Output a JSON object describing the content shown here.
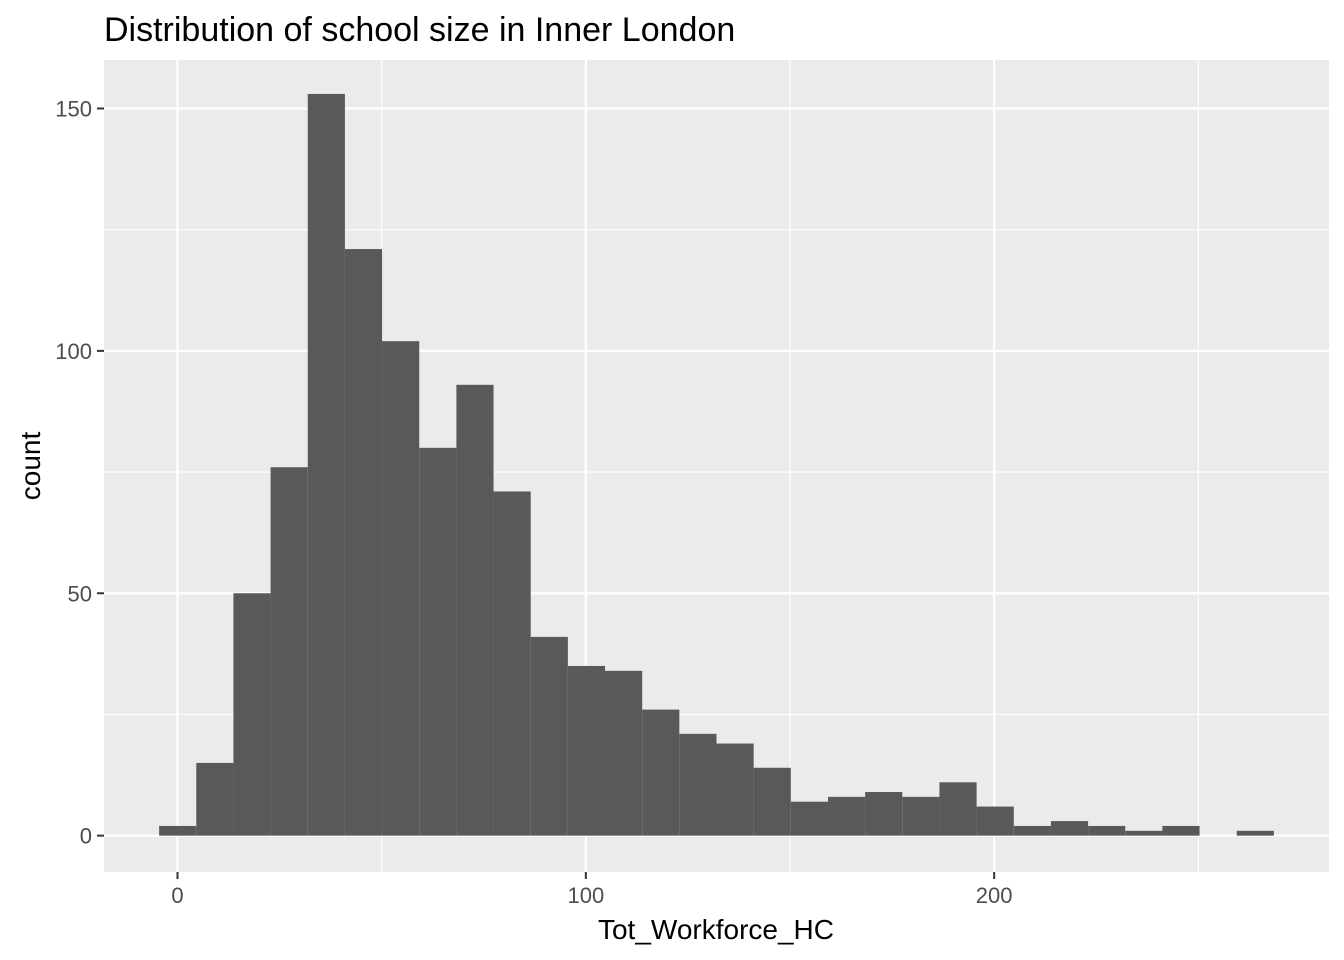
{
  "chart_data": {
    "type": "bar",
    "subtype": "histogram",
    "title": "Distribution of school size in Inner London",
    "xlabel": "Tot_Workforce_HC",
    "ylabel": "count",
    "xlim": [
      -18,
      282
    ],
    "ylim": [
      -7.5,
      160
    ],
    "x_ticks": [
      0,
      100,
      200
    ],
    "y_ticks": [
      0,
      50,
      100,
      150
    ],
    "grid": true,
    "bin_width": 9.1,
    "bins": [
      {
        "x0": -4.5,
        "x1": 4.6,
        "count": 2
      },
      {
        "x0": 4.6,
        "x1": 13.7,
        "count": 15
      },
      {
        "x0": 13.7,
        "x1": 22.8,
        "count": 50
      },
      {
        "x0": 22.8,
        "x1": 31.9,
        "count": 76
      },
      {
        "x0": 31.9,
        "x1": 41.0,
        "count": 153
      },
      {
        "x0": 41.0,
        "x1": 50.1,
        "count": 121
      },
      {
        "x0": 50.1,
        "x1": 59.2,
        "count": 102
      },
      {
        "x0": 59.2,
        "x1": 68.3,
        "count": 80
      },
      {
        "x0": 68.3,
        "x1": 77.4,
        "count": 93
      },
      {
        "x0": 77.4,
        "x1": 86.5,
        "count": 71
      },
      {
        "x0": 86.5,
        "x1": 95.6,
        "count": 41
      },
      {
        "x0": 95.6,
        "x1": 104.7,
        "count": 35
      },
      {
        "x0": 104.7,
        "x1": 113.8,
        "count": 34
      },
      {
        "x0": 113.8,
        "x1": 122.9,
        "count": 26
      },
      {
        "x0": 122.9,
        "x1": 132.0,
        "count": 21
      },
      {
        "x0": 132.0,
        "x1": 141.1,
        "count": 19
      },
      {
        "x0": 141.1,
        "x1": 150.2,
        "count": 14
      },
      {
        "x0": 150.2,
        "x1": 159.3,
        "count": 7
      },
      {
        "x0": 159.3,
        "x1": 168.4,
        "count": 8
      },
      {
        "x0": 168.4,
        "x1": 177.5,
        "count": 9
      },
      {
        "x0": 177.5,
        "x1": 186.6,
        "count": 8
      },
      {
        "x0": 186.6,
        "x1": 195.7,
        "count": 11
      },
      {
        "x0": 195.7,
        "x1": 204.8,
        "count": 6
      },
      {
        "x0": 204.8,
        "x1": 213.9,
        "count": 2
      },
      {
        "x0": 213.9,
        "x1": 223.0,
        "count": 3
      },
      {
        "x0": 223.0,
        "x1": 232.1,
        "count": 2
      },
      {
        "x0": 232.1,
        "x1": 241.2,
        "count": 1
      },
      {
        "x0": 241.2,
        "x1": 250.3,
        "count": 2
      },
      {
        "x0": 250.3,
        "x1": 259.4,
        "count": 0
      },
      {
        "x0": 259.4,
        "x1": 268.5,
        "count": 1
      }
    ],
    "colors": {
      "bar": "#595959",
      "panel": "#ebebeb",
      "grid": "#ffffff",
      "tick_text": "#4d4d4d",
      "title_text": "#000000"
    }
  }
}
